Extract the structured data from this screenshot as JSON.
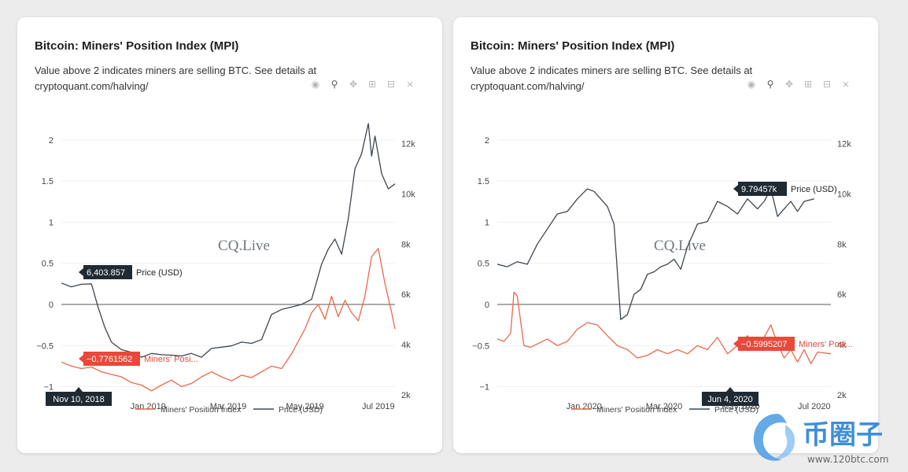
{
  "charts": [
    {
      "id": "left",
      "title": "Bitcoin: Miners' Position Index (MPI)",
      "description": "Value above 2 indicates miners are selling BTC. See details at cryptoquant.com/halving/",
      "watermark": "CQ.Live",
      "hover_date": "Nov 10, 2018",
      "mpi_tooltip": "−0.7761562",
      "mpi_tooltip_label": "Miners' Posi...",
      "price_tooltip": "6,403.857",
      "price_tooltip_label": "Price (USD)"
    },
    {
      "id": "right",
      "title": "Bitcoin: Miners' Position Index (MPI)",
      "description": "Value above 2 indicates miners are selling BTC. See details at cryptoquant.com/halving/",
      "watermark": "CQ.Live",
      "hover_date": "Jun 4, 2020",
      "mpi_tooltip": "−0.5995207",
      "mpi_tooltip_label": "Miners' Posi...",
      "price_tooltip": "9.79457k",
      "price_tooltip_label": "Price (USD)"
    }
  ],
  "toolbar_icons": [
    "camera-icon",
    "zoom-icon",
    "pan-icon",
    "zoom-in-icon",
    "zoom-out-icon",
    "autoscale-icon"
  ],
  "watermark_site": {
    "name": "币圈子",
    "url": "www.120btc.com"
  },
  "colors": {
    "mpi": "#e8694a",
    "price": "#3d4650",
    "tooltip_dark": "#1f2a33",
    "tooltip_red": "#e8493a",
    "zero_line": "#777777"
  },
  "chart_data": [
    {
      "type": "line",
      "x_ticks": [
        "Jan 2019",
        "Mar 2019",
        "May 2019",
        "Jul 2019"
      ],
      "y_left_ticks": [
        "−1",
        "−0.5",
        "0",
        "0.5",
        "1",
        "1.5",
        "2"
      ],
      "y_right_ticks": [
        "2k",
        "4k",
        "6k",
        "8k",
        "10k",
        "12k"
      ],
      "ylim_left": [
        -1.1,
        2.2
      ],
      "ylim_right": [
        2000,
        12800
      ],
      "xlim": [
        0,
        1
      ],
      "legend_position": "bottom",
      "grid": true,
      "series": [
        {
          "name": "Miners' Position Index",
          "axis": "left",
          "x": [
            0,
            0.03,
            0.06,
            0.09,
            0.12,
            0.15,
            0.18,
            0.21,
            0.24,
            0.27,
            0.3,
            0.33,
            0.36,
            0.39,
            0.42,
            0.45,
            0.48,
            0.51,
            0.54,
            0.57,
            0.6,
            0.63,
            0.66,
            0.69,
            0.71,
            0.73,
            0.75,
            0.77,
            0.79,
            0.81,
            0.83,
            0.85,
            0.87,
            0.89,
            0.91,
            0.93,
            0.95,
            0.97,
            0.99,
            1.0
          ],
          "y": [
            -0.7,
            -0.75,
            -0.78,
            -0.76,
            -0.82,
            -0.85,
            -0.88,
            -0.95,
            -0.98,
            -1.05,
            -0.98,
            -0.92,
            -1.0,
            -0.96,
            -0.88,
            -0.82,
            -0.88,
            -0.93,
            -0.86,
            -0.89,
            -0.82,
            -0.75,
            -0.78,
            -0.6,
            -0.45,
            -0.3,
            -0.1,
            0.0,
            -0.18,
            0.1,
            -0.15,
            0.05,
            -0.1,
            -0.2,
            0.1,
            0.58,
            0.68,
            0.25,
            -0.1,
            -0.3
          ]
        },
        {
          "name": "Price (USD)",
          "axis": "right",
          "x": [
            0,
            0.03,
            0.06,
            0.09,
            0.11,
            0.13,
            0.15,
            0.18,
            0.21,
            0.24,
            0.27,
            0.3,
            0.33,
            0.36,
            0.39,
            0.42,
            0.45,
            0.48,
            0.51,
            0.54,
            0.57,
            0.6,
            0.63,
            0.66,
            0.69,
            0.72,
            0.75,
            0.78,
            0.8,
            0.82,
            0.84,
            0.86,
            0.88,
            0.9,
            0.92,
            0.93,
            0.94,
            0.96,
            0.98,
            1.0
          ],
          "y": [
            6450,
            6300,
            6400,
            6420,
            5500,
            4700,
            4100,
            3800,
            3700,
            3500,
            3650,
            3600,
            3580,
            3550,
            3650,
            3500,
            3850,
            3900,
            3950,
            4100,
            4050,
            4200,
            5200,
            5400,
            5500,
            5600,
            5800,
            7200,
            7800,
            8200,
            7600,
            9000,
            11000,
            11600,
            12800,
            11500,
            12300,
            10800,
            10200,
            10400
          ]
        }
      ]
    },
    {
      "type": "line",
      "x_ticks": [
        "Jan 2020",
        "Mar 2020",
        "May 2020",
        "Jul 2020"
      ],
      "y_left_ticks": [
        "−1",
        "−0.5",
        "0",
        "0.5",
        "1",
        "1.5",
        "2"
      ],
      "y_right_ticks": [
        "2k",
        "4k",
        "6k",
        "8k",
        "10k",
        "12k"
      ],
      "ylim_left": [
        -1.1,
        2.2
      ],
      "ylim_right": [
        2000,
        12800
      ],
      "xlim": [
        0,
        1
      ],
      "legend_position": "bottom",
      "grid": true,
      "series": [
        {
          "name": "Miners' Position Index",
          "axis": "left",
          "x": [
            0,
            0.02,
            0.04,
            0.05,
            0.06,
            0.08,
            0.1,
            0.12,
            0.15,
            0.18,
            0.21,
            0.24,
            0.27,
            0.3,
            0.33,
            0.36,
            0.39,
            0.42,
            0.45,
            0.48,
            0.51,
            0.54,
            0.57,
            0.6,
            0.63,
            0.66,
            0.69,
            0.72,
            0.75,
            0.78,
            0.8,
            0.82,
            0.84,
            0.86,
            0.88,
            0.9,
            0.92,
            0.94,
            0.96,
            1.0
          ],
          "y": [
            -0.42,
            -0.45,
            -0.35,
            0.15,
            0.1,
            -0.5,
            -0.52,
            -0.48,
            -0.42,
            -0.5,
            -0.45,
            -0.3,
            -0.22,
            -0.25,
            -0.38,
            -0.5,
            -0.55,
            -0.65,
            -0.62,
            -0.55,
            -0.6,
            -0.55,
            -0.6,
            -0.5,
            -0.55,
            -0.4,
            -0.6,
            -0.5,
            -0.38,
            -0.55,
            -0.4,
            -0.25,
            -0.48,
            -0.65,
            -0.55,
            -0.7,
            -0.55,
            -0.72,
            -0.58,
            -0.6
          ]
        },
        {
          "name": "Price (USD)",
          "axis": "right",
          "x": [
            0,
            0.03,
            0.06,
            0.09,
            0.12,
            0.15,
            0.18,
            0.21,
            0.24,
            0.27,
            0.29,
            0.31,
            0.33,
            0.35,
            0.37,
            0.39,
            0.41,
            0.43,
            0.45,
            0.47,
            0.49,
            0.51,
            0.53,
            0.55,
            0.57,
            0.6,
            0.63,
            0.66,
            0.69,
            0.72,
            0.75,
            0.78,
            0.8,
            0.82,
            0.84,
            0.86,
            0.88,
            0.9,
            0.92,
            0.95
          ],
          "y": [
            7200,
            7100,
            7300,
            7200,
            8000,
            8600,
            9200,
            9300,
            9800,
            10200,
            10100,
            9800,
            9500,
            8800,
            5000,
            5200,
            6000,
            6200,
            6800,
            6900,
            7100,
            7200,
            7400,
            7000,
            7900,
            8800,
            8900,
            9700,
            9500,
            9200,
            9800,
            9400,
            9700,
            10200,
            9100,
            9400,
            9700,
            9300,
            9700,
            9800
          ]
        }
      ]
    }
  ]
}
